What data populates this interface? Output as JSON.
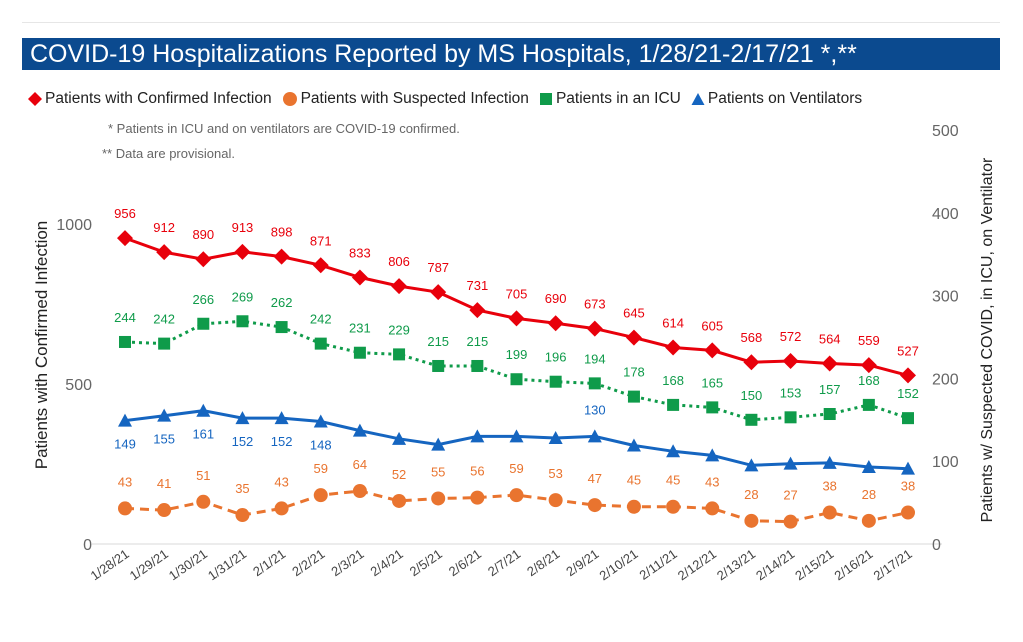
{
  "chart_data": {
    "type": "line",
    "title": "COVID-19 Hospitalizations Reported by MS Hospitals, 1/28/21-2/17/21 *,**",
    "notes": [
      "* Patients in ICU and on ventilators are COVID-19 confirmed.",
      "** Data are provisional."
    ],
    "categories": [
      "1/28/21",
      "1/29/21",
      "1/30/21",
      "1/31/21",
      "2/1/21",
      "2/2/21",
      "2/3/21",
      "2/4/21",
      "2/5/21",
      "2/6/21",
      "2/7/21",
      "2/8/21",
      "2/9/21",
      "2/10/21",
      "2/11/21",
      "2/12/21",
      "2/13/21",
      "2/14/21",
      "2/15/21",
      "2/16/21",
      "2/17/21"
    ],
    "y_left": {
      "label": "Patients with Confirmed Infection",
      "min": 0,
      "max": 1250,
      "ticks": [
        0,
        500,
        1000
      ]
    },
    "y_right": {
      "label": "Patients w/ Suspected COVID, in ICU, on Ventilator",
      "min": 0,
      "max": 500,
      "ticks": [
        0,
        100,
        200,
        300,
        400,
        500
      ]
    },
    "grid": false,
    "legend_position": "top",
    "series": [
      {
        "name": "Patients with Confirmed Infection",
        "axis": "left",
        "color": "#e8000b",
        "marker": "diamond",
        "line": "solid",
        "values": [
          956,
          912,
          890,
          913,
          898,
          871,
          833,
          806,
          787,
          731,
          705,
          690,
          673,
          645,
          614,
          605,
          568,
          572,
          564,
          559,
          527
        ],
        "labels": [
          "956",
          "912",
          "890",
          "913",
          "898",
          "871",
          "833",
          "806",
          "787",
          "731",
          "705",
          "690",
          "673",
          "645",
          "614",
          "605",
          "568",
          "572",
          "564",
          "559",
          "527"
        ]
      },
      {
        "name": "Patients with Suspected Infection",
        "axis": "right",
        "color": "#e9742f",
        "marker": "circle",
        "line": "dashed",
        "values": [
          43,
          41,
          51,
          35,
          43,
          59,
          64,
          52,
          55,
          56,
          59,
          53,
          47,
          45,
          45,
          43,
          28,
          27,
          38,
          28,
          38
        ],
        "labels": [
          "43",
          "41",
          "51",
          "35",
          "43",
          "59",
          "64",
          "52",
          "55",
          "56",
          "59",
          "53",
          "47",
          "45",
          "45",
          "43",
          "28",
          "27",
          "38",
          "28",
          "38"
        ]
      },
      {
        "name": "Patients in an ICU",
        "axis": "right",
        "color": "#0f9b4a",
        "marker": "square",
        "line": "dotted",
        "values": [
          244,
          242,
          266,
          269,
          262,
          242,
          231,
          229,
          215,
          215,
          199,
          196,
          194,
          178,
          168,
          165,
          150,
          153,
          157,
          168,
          152
        ],
        "labels": [
          "244",
          "242",
          "266",
          "269",
          "262",
          "242",
          "231",
          "229",
          "215",
          "215",
          "199",
          "196",
          "194",
          "178",
          "168",
          "165",
          "150",
          "153",
          "157",
          "168",
          "152"
        ]
      },
      {
        "name": "Patients on Ventilators",
        "axis": "right",
        "color": "#1565c0",
        "marker": "triangle",
        "line": "solid",
        "values": [
          149,
          155,
          161,
          152,
          152,
          148,
          137,
          127,
          120,
          130,
          130,
          128,
          130,
          119,
          112,
          107,
          95,
          97,
          98,
          93,
          91
        ],
        "labels": [
          "149",
          "155",
          "161",
          "152",
          "152",
          "148",
          "",
          "",
          "",
          "",
          "",
          "",
          "130",
          "",
          "",
          "",
          "",
          "",
          "",
          "",
          ""
        ]
      }
    ]
  },
  "legend_icons": [
    "red-diamond-icon",
    "orange-circle-icon",
    "green-square-icon",
    "blue-triangle-icon"
  ]
}
